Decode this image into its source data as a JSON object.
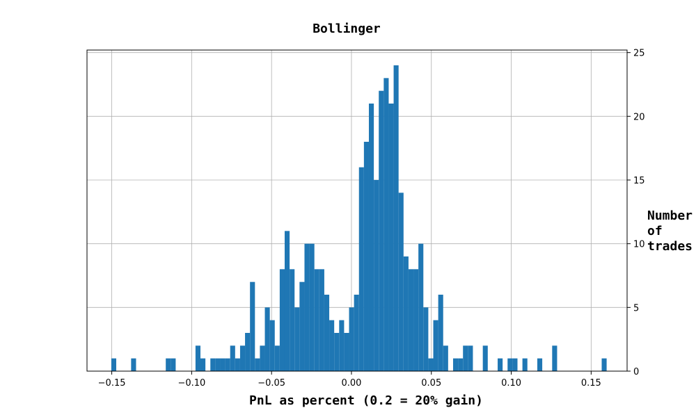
{
  "chart_data": {
    "type": "bar",
    "title": "Bollinger",
    "xlabel": "PnL as percent (0.2 = 20% gain)",
    "ylabel_lines": [
      "Number",
      "of",
      "trades"
    ],
    "xlim": [
      -0.1655,
      0.1725
    ],
    "ylim": [
      0,
      25.2
    ],
    "grid": true,
    "y_axis_position": "right",
    "bar_color": "#1f77b4",
    "bin_width": 0.0031,
    "xticks": [
      -0.15,
      -0.1,
      -0.05,
      0.0,
      0.05,
      0.1,
      0.15
    ],
    "xtick_labels": [
      "−0.15",
      "−0.10",
      "−0.05",
      "0.00",
      "0.05",
      "0.10",
      "0.15"
    ],
    "yticks": [
      0,
      5,
      10,
      15,
      20,
      25
    ],
    "ytick_labels": [
      "0",
      "5",
      "10",
      "15",
      "20",
      "25"
    ],
    "bins": [
      {
        "x": -0.1503,
        "count": 1
      },
      {
        "x": -0.1379,
        "count": 1
      },
      {
        "x": -0.1162,
        "count": 1
      },
      {
        "x": -0.1131,
        "count": 1
      },
      {
        "x": -0.0976,
        "count": 2
      },
      {
        "x": -0.0945,
        "count": 1
      },
      {
        "x": -0.0883,
        "count": 1
      },
      {
        "x": -0.0852,
        "count": 1
      },
      {
        "x": -0.0821,
        "count": 1
      },
      {
        "x": -0.079,
        "count": 1
      },
      {
        "x": -0.0759,
        "count": 2
      },
      {
        "x": -0.0728,
        "count": 1
      },
      {
        "x": -0.0697,
        "count": 2
      },
      {
        "x": -0.0666,
        "count": 3
      },
      {
        "x": -0.0635,
        "count": 7
      },
      {
        "x": -0.0604,
        "count": 1
      },
      {
        "x": -0.0573,
        "count": 2
      },
      {
        "x": -0.0542,
        "count": 5
      },
      {
        "x": -0.0511,
        "count": 4
      },
      {
        "x": -0.048,
        "count": 2
      },
      {
        "x": -0.0449,
        "count": 8
      },
      {
        "x": -0.0418,
        "count": 11
      },
      {
        "x": -0.0387,
        "count": 8
      },
      {
        "x": -0.0356,
        "count": 5
      },
      {
        "x": -0.0325,
        "count": 7
      },
      {
        "x": -0.0294,
        "count": 10
      },
      {
        "x": -0.0263,
        "count": 10
      },
      {
        "x": -0.0232,
        "count": 8
      },
      {
        "x": -0.0201,
        "count": 8
      },
      {
        "x": -0.017,
        "count": 6
      },
      {
        "x": -0.0139,
        "count": 4
      },
      {
        "x": -0.0108,
        "count": 3
      },
      {
        "x": -0.0077,
        "count": 4
      },
      {
        "x": -0.0046,
        "count": 3
      },
      {
        "x": -0.0015,
        "count": 5
      },
      {
        "x": 0.0016,
        "count": 6
      },
      {
        "x": 0.0047,
        "count": 16
      },
      {
        "x": 0.0078,
        "count": 18
      },
      {
        "x": 0.0109,
        "count": 21
      },
      {
        "x": 0.014,
        "count": 15
      },
      {
        "x": 0.0171,
        "count": 22
      },
      {
        "x": 0.0202,
        "count": 23
      },
      {
        "x": 0.0233,
        "count": 21
      },
      {
        "x": 0.0264,
        "count": 24
      },
      {
        "x": 0.0295,
        "count": 14
      },
      {
        "x": 0.0326,
        "count": 9
      },
      {
        "x": 0.0357,
        "count": 8
      },
      {
        "x": 0.0388,
        "count": 8
      },
      {
        "x": 0.0419,
        "count": 10
      },
      {
        "x": 0.045,
        "count": 5
      },
      {
        "x": 0.0481,
        "count": 1
      },
      {
        "x": 0.0512,
        "count": 4
      },
      {
        "x": 0.0543,
        "count": 6
      },
      {
        "x": 0.0574,
        "count": 2
      },
      {
        "x": 0.0636,
        "count": 1
      },
      {
        "x": 0.0667,
        "count": 1
      },
      {
        "x": 0.0698,
        "count": 2
      },
      {
        "x": 0.0729,
        "count": 2
      },
      {
        "x": 0.0822,
        "count": 2
      },
      {
        "x": 0.0915,
        "count": 1
      },
      {
        "x": 0.0977,
        "count": 1
      },
      {
        "x": 0.1008,
        "count": 1
      },
      {
        "x": 0.107,
        "count": 1
      },
      {
        "x": 0.1163,
        "count": 1
      },
      {
        "x": 0.1256,
        "count": 2
      },
      {
        "x": 0.1566,
        "count": 1
      }
    ]
  }
}
